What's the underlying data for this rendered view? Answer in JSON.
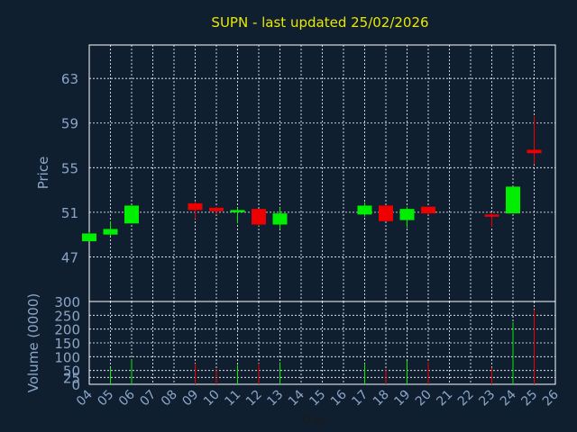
{
  "chart_data": {
    "type": "candlestick",
    "title": "SUPN - last updated 25/02/2026",
    "ylabel": "Price",
    "volume_label": "Volume (0000)",
    "xlabel": "Day",
    "price_ylim": [
      43,
      66
    ],
    "price_ticks": [
      47,
      51,
      55,
      59,
      63
    ],
    "volume_ylim": [
      0,
      300
    ],
    "volume_ticks": [
      0,
      25,
      50,
      100,
      150,
      200,
      250,
      300
    ],
    "x_ticks": [
      "04",
      "05",
      "06",
      "07",
      "08",
      "09",
      "10",
      "11",
      "12",
      "13",
      "14",
      "15",
      "16",
      "17",
      "18",
      "19",
      "20",
      "21",
      "22",
      "23",
      "24",
      "25",
      "26"
    ],
    "grid": true,
    "colors": {
      "up": "#00ee00",
      "down": "#ee0000",
      "title": "#e8e800",
      "label": "#8aa6c8",
      "grid": "#ffffff",
      "background": "#0f1f30"
    },
    "candles": [
      {
        "day": 4,
        "open": 48.4,
        "high": 49.2,
        "low": 48.4,
        "close": 49.1,
        "volume": 0
      },
      {
        "day": 5,
        "open": 49.0,
        "high": 50.2,
        "low": 48.9,
        "close": 49.5,
        "volume": 60
      },
      {
        "day": 6,
        "open": 50.0,
        "high": 51.6,
        "low": 50.0,
        "close": 51.6,
        "volume": 90
      },
      {
        "day": 9,
        "open": 51.8,
        "high": 52.0,
        "low": 50.4,
        "close": 51.2,
        "volume": 75
      },
      {
        "day": 10,
        "open": 51.4,
        "high": 51.5,
        "low": 50.8,
        "close": 51.1,
        "volume": 55
      },
      {
        "day": 11,
        "open": 51.0,
        "high": 51.4,
        "low": 50.0,
        "close": 51.2,
        "volume": 70
      },
      {
        "day": 12,
        "open": 51.3,
        "high": 51.3,
        "low": 49.8,
        "close": 49.9,
        "volume": 75
      },
      {
        "day": 13,
        "open": 49.9,
        "high": 51.4,
        "low": 49.5,
        "close": 50.9,
        "volume": 80
      },
      {
        "day": 17,
        "open": 50.8,
        "high": 51.9,
        "low": 50.6,
        "close": 51.6,
        "volume": 75
      },
      {
        "day": 18,
        "open": 51.6,
        "high": 51.6,
        "low": 50.2,
        "close": 50.2,
        "volume": 55
      },
      {
        "day": 19,
        "open": 50.3,
        "high": 51.5,
        "low": 49.6,
        "close": 51.3,
        "volume": 85
      },
      {
        "day": 20,
        "open": 51.5,
        "high": 51.5,
        "low": 50.8,
        "close": 50.9,
        "volume": 80
      },
      {
        "day": 23,
        "open": 50.8,
        "high": 51.0,
        "low": 49.7,
        "close": 50.6,
        "volume": 60
      },
      {
        "day": 24,
        "open": 50.9,
        "high": 53.3,
        "low": 50.9,
        "close": 53.3,
        "volume": 225
      },
      {
        "day": 25,
        "open": 56.6,
        "high": 59.6,
        "low": 55.3,
        "close": 56.3,
        "volume": 270
      }
    ]
  }
}
